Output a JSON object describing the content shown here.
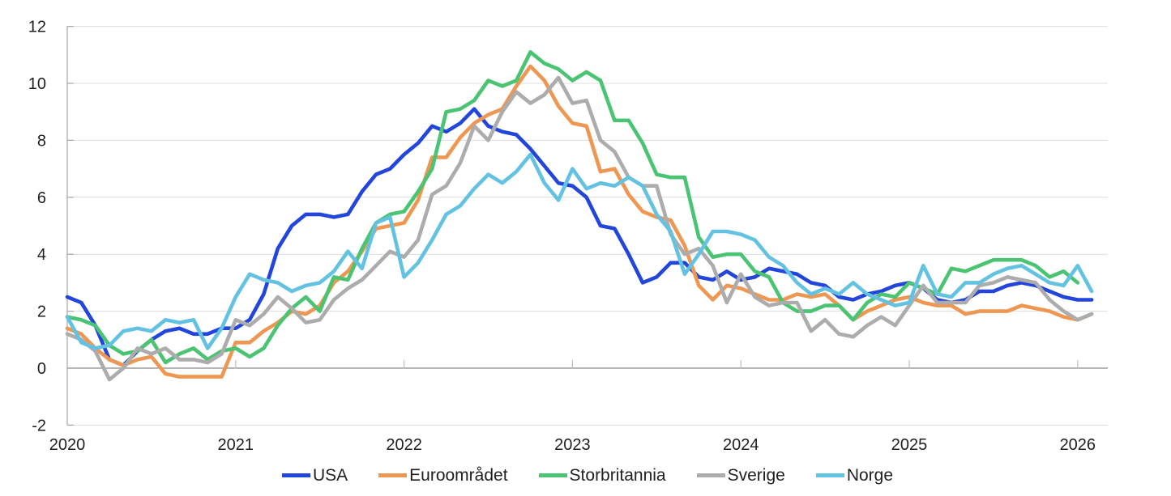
{
  "chart_data": {
    "type": "line",
    "title": "",
    "x_start": "2020-01",
    "x_interval": "month",
    "x_tick_labels": [
      "2020",
      "2021",
      "2022",
      "2023",
      "2024",
      "2025",
      "2026"
    ],
    "y_ticks": [
      -2,
      0,
      2,
      4,
      6,
      8,
      10,
      12
    ],
    "ylim": [
      -2,
      12
    ],
    "grid": "horizontal",
    "legend_position": "bottom",
    "zero_line": true,
    "colors": {
      "grid": "#dcdcdc",
      "zero_line": "#9c9c9c",
      "axis": "#a6a6a6",
      "year_tick": "#bfbfbf",
      "text": "#1f1f1f"
    },
    "series": [
      {
        "name": "USA",
        "color": "#2245db",
        "end": "2026-02",
        "values": [
          2.5,
          2.3,
          1.5,
          0.3,
          0.1,
          0.6,
          1.0,
          1.3,
          1.4,
          1.2,
          1.2,
          1.4,
          1.4,
          1.7,
          2.6,
          4.2,
          5.0,
          5.4,
          5.4,
          5.3,
          5.4,
          6.2,
          6.8,
          7.0,
          7.5,
          7.9,
          8.5,
          8.3,
          8.6,
          9.1,
          8.5,
          8.3,
          8.2,
          7.7,
          7.1,
          6.5,
          6.4,
          6.0,
          5.0,
          4.9,
          4.0,
          3.0,
          3.2,
          3.7,
          3.7,
          3.2,
          3.1,
          3.4,
          3.1,
          3.2,
          3.5,
          3.4,
          3.3,
          3.0,
          2.9,
          2.5,
          2.4,
          2.6,
          2.7,
          2.9,
          3.0,
          2.8,
          2.4,
          2.3,
          2.4,
          2.7,
          2.7,
          2.9,
          3.0,
          2.9,
          2.7,
          2.5,
          2.4,
          2.4
        ]
      },
      {
        "name": "Euroområdet",
        "color": "#ee9752",
        "end": "2026-02",
        "values": [
          1.4,
          1.2,
          0.7,
          0.3,
          0.1,
          0.3,
          0.4,
          -0.2,
          -0.3,
          -0.3,
          -0.3,
          -0.3,
          0.9,
          0.9,
          1.3,
          1.6,
          2.0,
          1.9,
          2.2,
          3.0,
          3.4,
          4.1,
          4.9,
          5.0,
          5.1,
          5.9,
          7.4,
          7.4,
          8.1,
          8.6,
          8.9,
          9.1,
          9.9,
          10.6,
          10.1,
          9.2,
          8.6,
          8.5,
          6.9,
          7.0,
          6.1,
          5.5,
          5.3,
          5.2,
          4.3,
          2.9,
          2.4,
          2.9,
          2.8,
          2.6,
          2.4,
          2.4,
          2.6,
          2.5,
          2.6,
          2.2,
          1.7,
          2.0,
          2.2,
          2.4,
          2.5,
          2.3,
          2.2,
          2.2,
          1.9,
          2.0,
          2.0,
          2.0,
          2.2,
          2.1,
          2.0,
          1.8,
          1.7,
          1.9
        ]
      },
      {
        "name": "Storbritannia",
        "color": "#4ac472",
        "end": "2026-01",
        "values": [
          1.8,
          1.7,
          1.5,
          0.8,
          0.5,
          0.6,
          1.0,
          0.2,
          0.5,
          0.7,
          0.3,
          0.6,
          0.7,
          0.4,
          0.7,
          1.5,
          2.1,
          2.5,
          2.0,
          3.2,
          3.1,
          4.2,
          5.1,
          5.4,
          5.5,
          6.2,
          7.0,
          9.0,
          9.1,
          9.4,
          10.1,
          9.9,
          10.1,
          11.1,
          10.7,
          10.5,
          10.1,
          10.4,
          10.1,
          8.7,
          8.7,
          7.9,
          6.8,
          6.7,
          6.7,
          4.6,
          3.9,
          4.0,
          4.0,
          3.4,
          3.2,
          2.3,
          2.0,
          2.0,
          2.2,
          2.2,
          1.7,
          2.3,
          2.6,
          2.5,
          3.0,
          2.8,
          2.6,
          3.5,
          3.4,
          3.6,
          3.8,
          3.8,
          3.8,
          3.6,
          3.2,
          3.4,
          3.0
        ]
      },
      {
        "name": "Sverige",
        "color": "#acacac",
        "end": "2026-02",
        "values": [
          1.2,
          1.0,
          0.6,
          -0.4,
          0.0,
          0.7,
          0.5,
          0.7,
          0.3,
          0.3,
          0.2,
          0.5,
          1.7,
          1.5,
          1.9,
          2.5,
          2.1,
          1.6,
          1.7,
          2.4,
          2.8,
          3.1,
          3.6,
          4.1,
          3.9,
          4.5,
          6.1,
          6.4,
          7.2,
          8.5,
          8.0,
          9.0,
          9.7,
          9.3,
          9.6,
          10.2,
          9.3,
          9.4,
          8.0,
          7.6,
          6.7,
          6.4,
          6.4,
          4.7,
          4.0,
          4.2,
          3.6,
          2.3,
          3.3,
          2.5,
          2.2,
          2.3,
          2.3,
          1.3,
          1.7,
          1.2,
          1.1,
          1.5,
          1.8,
          1.5,
          2.2,
          2.9,
          2.3,
          2.3,
          2.3,
          2.9,
          3.0,
          3.2,
          3.1,
          3.0,
          2.4,
          2.0,
          1.7,
          1.9
        ]
      },
      {
        "name": "Norge",
        "color": "#63c2e2",
        "end": "2026-02",
        "values": [
          1.8,
          0.9,
          0.7,
          0.8,
          1.3,
          1.4,
          1.3,
          1.7,
          1.6,
          1.7,
          0.7,
          1.4,
          2.5,
          3.3,
          3.1,
          3.0,
          2.7,
          2.9,
          3.0,
          3.4,
          4.1,
          3.5,
          5.1,
          5.3,
          3.2,
          3.7,
          4.5,
          5.4,
          5.7,
          6.3,
          6.8,
          6.5,
          6.9,
          7.5,
          6.5,
          5.9,
          7.0,
          6.3,
          6.5,
          6.4,
          6.7,
          6.4,
          5.4,
          4.8,
          3.3,
          4.0,
          4.8,
          4.8,
          4.7,
          4.5,
          3.9,
          3.6,
          3.0,
          2.6,
          2.8,
          2.6,
          3.0,
          2.6,
          2.4,
          2.2,
          2.3,
          3.6,
          2.6,
          2.5,
          3.0,
          3.0,
          3.3,
          3.5,
          3.6,
          3.3,
          3.0,
          2.9,
          3.6,
          2.7
        ]
      }
    ]
  }
}
